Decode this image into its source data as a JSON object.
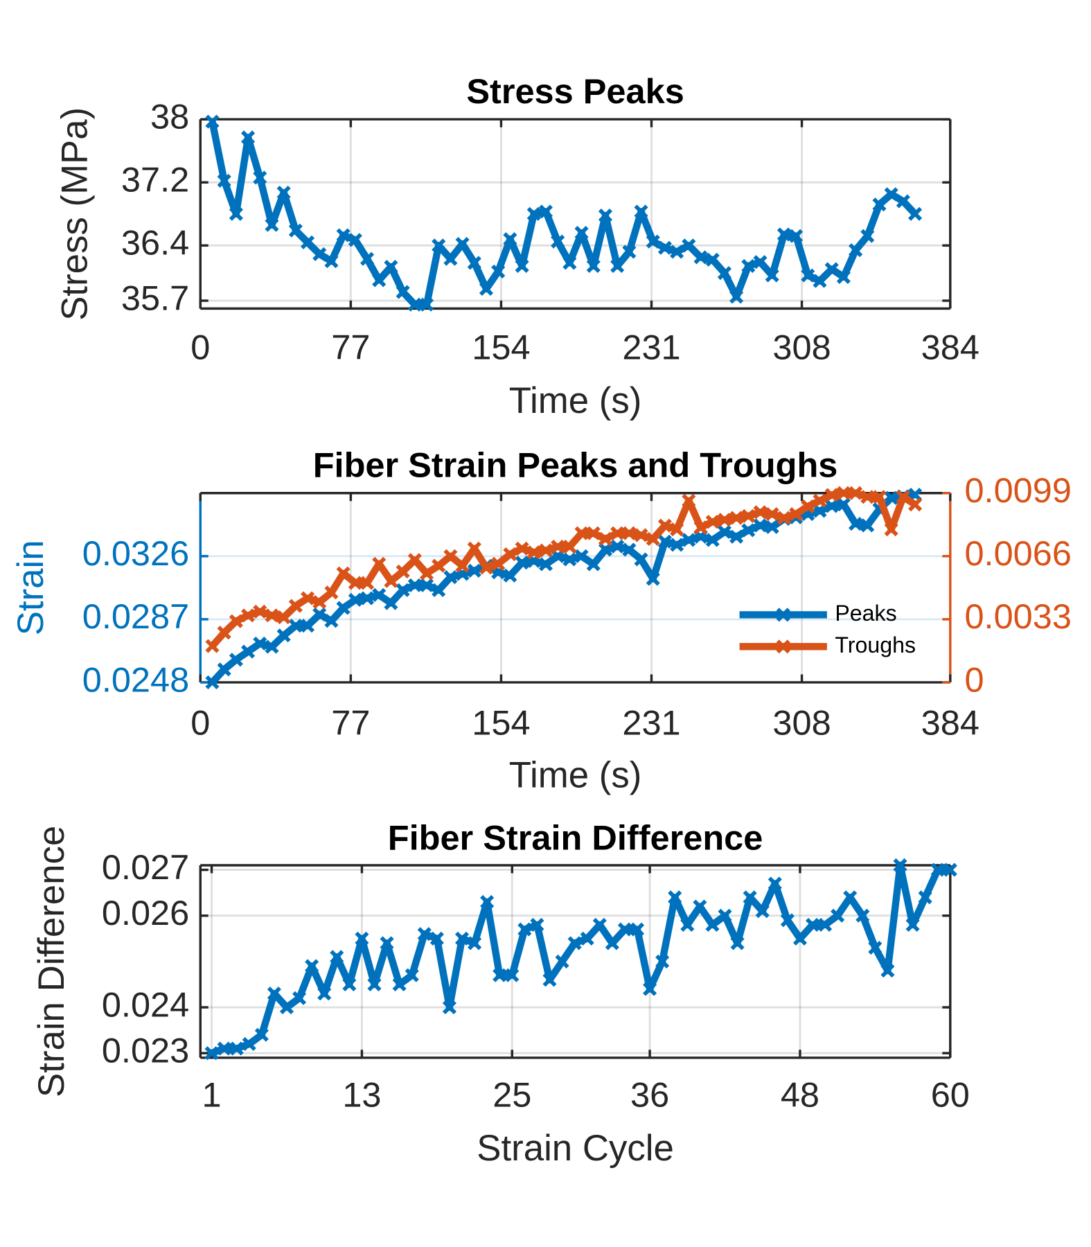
{
  "chart_data": [
    {
      "type": "line",
      "title": "Stress Peaks",
      "xlabel": "Time (s)",
      "ylabel": "Stress (MPa)",
      "color": "#0072BD",
      "grid": true,
      "x": [
        6.1,
        12.2,
        18.3,
        24.4,
        30.5,
        36.6,
        42.7,
        48.8,
        54.9,
        61,
        67.1,
        73.2,
        79.3,
        85.4,
        91.5,
        97.6,
        103.7,
        109.8,
        115.9,
        122,
        128.1,
        134.2,
        140.3,
        146.4,
        152.5,
        158.6,
        164.7,
        170.8,
        176.9,
        183,
        189.1,
        195.2,
        201.3,
        207.4,
        213.5,
        219.6,
        225.7,
        231.8,
        237.9,
        244,
        250.1,
        256.2,
        262.3,
        268.4,
        274.5,
        280.6,
        286.7,
        292.8,
        298.9,
        305,
        311.1,
        317.2,
        323.3,
        329.4,
        335.5,
        341.6,
        347.7,
        353.8,
        359.9,
        366
      ],
      "values": [
        37.97,
        37.22,
        36.8,
        37.77,
        37.26,
        36.66,
        37.07,
        36.59,
        36.44,
        36.29,
        36.2,
        36.53,
        36.47,
        36.23,
        35.96,
        36.13,
        35.81,
        35.65,
        35.65,
        36.4,
        36.23,
        36.42,
        36.18,
        35.85,
        36.07,
        36.48,
        36.14,
        36.8,
        36.83,
        36.45,
        36.18,
        36.56,
        36.14,
        36.78,
        36.14,
        36.32,
        36.83,
        36.45,
        36.37,
        36.32,
        36.4,
        36.25,
        36.22,
        36.05,
        35.75,
        36.14,
        36.19,
        36.02,
        36.54,
        36.52,
        36.02,
        35.95,
        36.1,
        36.0,
        36.34,
        36.52,
        36.92,
        37.05,
        36.96,
        36.8
      ],
      "xlim": [
        0,
        384
      ],
      "xticks": [
        0,
        77,
        154,
        231,
        308,
        384
      ],
      "ylim": [
        35.6,
        38
      ],
      "yticks": [
        35.7,
        36.4,
        37.2,
        38
      ]
    },
    {
      "type": "line",
      "title": "Fiber Strain Peaks and Troughs",
      "xlabel": "Time (s)",
      "ylabel": "Strain",
      "grid": true,
      "legend": "lower right",
      "x": [
        6.1,
        12.2,
        18.3,
        24.4,
        30.5,
        36.6,
        42.7,
        48.8,
        54.9,
        61,
        67.1,
        73.2,
        79.3,
        85.4,
        91.5,
        97.6,
        103.7,
        109.8,
        115.9,
        122,
        128.1,
        134.2,
        140.3,
        146.4,
        152.5,
        158.6,
        164.7,
        170.8,
        176.9,
        183,
        189.1,
        195.2,
        201.3,
        207.4,
        213.5,
        219.6,
        225.7,
        231.8,
        237.9,
        244,
        250.1,
        256.2,
        262.3,
        268.4,
        274.5,
        280.6,
        286.7,
        292.8,
        298.9,
        305,
        311.1,
        317.2,
        323.3,
        329.4,
        335.5,
        341.6,
        347.7,
        353.8,
        359.9,
        366
      ],
      "series": [
        {
          "name": "Peaks",
          "color": "#0072BD",
          "values": [
            0.0248,
            0.0256,
            0.0262,
            0.0267,
            0.0272,
            0.027,
            0.0277,
            0.0283,
            0.0283,
            0.029,
            0.0286,
            0.0294,
            0.0299,
            0.03,
            0.0302,
            0.0297,
            0.0305,
            0.0308,
            0.0308,
            0.0305,
            0.0313,
            0.0315,
            0.0317,
            0.032,
            0.0316,
            0.0314,
            0.0322,
            0.0323,
            0.0321,
            0.0326,
            0.0324,
            0.0326,
            0.0321,
            0.033,
            0.0332,
            0.033,
            0.0324,
            0.0312,
            0.0335,
            0.0333,
            0.0336,
            0.0338,
            0.0336,
            0.0341,
            0.0338,
            0.0342,
            0.0345,
            0.0344,
            0.0349,
            0.035,
            0.0352,
            0.0354,
            0.0357,
            0.0358,
            0.0346,
            0.0345,
            0.0355,
            0.0362,
            0.0363,
            0.0364
          ]
        },
        {
          "name": "Troughs",
          "color": "#D95319",
          "axis": "y2",
          "values": [
            0.0019,
            0.0026,
            0.0032,
            0.0035,
            0.0037,
            0.0035,
            0.0034,
            0.004,
            0.0044,
            0.0042,
            0.0047,
            0.0057,
            0.0052,
            0.0052,
            0.0062,
            0.0053,
            0.0058,
            0.0064,
            0.0057,
            0.0061,
            0.0066,
            0.0061,
            0.007,
            0.006,
            0.0062,
            0.0067,
            0.007,
            0.0068,
            0.0069,
            0.0071,
            0.0071,
            0.0078,
            0.0078,
            0.0075,
            0.0078,
            0.0078,
            0.0077,
            0.0075,
            0.0082,
            0.008,
            0.0095,
            0.0081,
            0.0084,
            0.0085,
            0.0086,
            0.0087,
            0.0089,
            0.0088,
            0.0086,
            0.0088,
            0.0092,
            0.0095,
            0.0098,
            0.0099,
            0.0099,
            0.0097,
            0.0097,
            0.008,
            0.0097,
            0.0093
          ]
        }
      ],
      "xlim": [
        0,
        384
      ],
      "xticks": [
        0,
        77,
        154,
        231,
        308,
        384
      ],
      "ylim": [
        0.0248,
        0.0365
      ],
      "yticks": [
        0.0248,
        0.0287,
        0.0326
      ],
      "y2lim": [
        0,
        0.0099
      ],
      "y2ticks": [
        0,
        0.0033,
        0.0066,
        0.0099
      ]
    },
    {
      "type": "line",
      "title": "Fiber Strain Difference",
      "xlabel": "Strain Cycle",
      "ylabel": "Strain Difference",
      "color": "#0072BD",
      "grid": true,
      "x": [
        1,
        2,
        3,
        4,
        5,
        6,
        7,
        8,
        9,
        10,
        11,
        12,
        13,
        14,
        15,
        16,
        17,
        18,
        19,
        20,
        21,
        22,
        23,
        24,
        25,
        26,
        27,
        28,
        29,
        30,
        31,
        32,
        33,
        34,
        35,
        36,
        37,
        38,
        39,
        40,
        41,
        42,
        43,
        44,
        45,
        46,
        47,
        48,
        49,
        50,
        51,
        52,
        53,
        54,
        55,
        56,
        57,
        58,
        59,
        60
      ],
      "values": [
        0.023,
        0.0231,
        0.0231,
        0.0232,
        0.0234,
        0.0243,
        0.024,
        0.0242,
        0.0249,
        0.0243,
        0.0251,
        0.0245,
        0.0255,
        0.0245,
        0.0254,
        0.0245,
        0.0247,
        0.0256,
        0.0255,
        0.024,
        0.0255,
        0.0254,
        0.0263,
        0.0247,
        0.0247,
        0.0257,
        0.0258,
        0.0246,
        0.025,
        0.0254,
        0.0255,
        0.0258,
        0.0254,
        0.0257,
        0.0257,
        0.0244,
        0.025,
        0.0264,
        0.0258,
        0.0262,
        0.0258,
        0.026,
        0.0254,
        0.0264,
        0.0261,
        0.0267,
        0.0259,
        0.0255,
        0.0258,
        0.0258,
        0.026,
        0.0264,
        0.026,
        0.0253,
        0.0248,
        0.0271,
        0.0258,
        0.0264,
        0.027,
        0.027
      ],
      "xlim": [
        0.1,
        60
      ],
      "xticks": [
        1,
        13,
        25,
        36,
        48,
        60
      ],
      "ylim": [
        0.0229,
        0.0271
      ],
      "yticks": [
        0.023,
        0.024,
        0.026,
        0.027
      ]
    }
  ]
}
